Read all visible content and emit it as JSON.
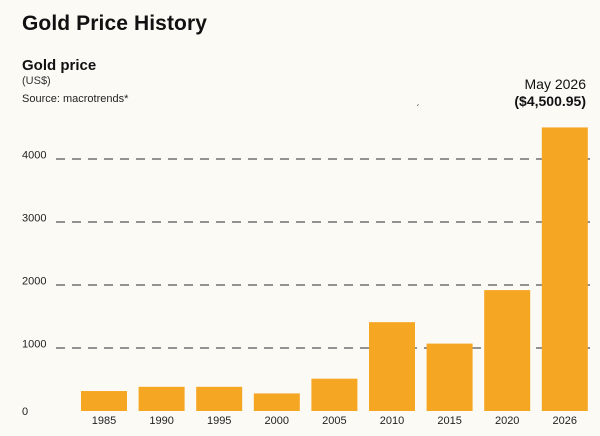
{
  "page_title": "Gold Price History",
  "chart_data": {
    "type": "bar",
    "title": "Gold price",
    "units": "(US$)",
    "source": "Source: macrotrends*",
    "callout": {
      "date": "May 2026",
      "value_text": "($4,500.95)"
    },
    "stray_mark": "ˏ",
    "categories": [
      "1985",
      "1990",
      "1995",
      "2000",
      "2005",
      "2010",
      "2015",
      "2020",
      "2026"
    ],
    "values": [
      317,
      384,
      384,
      279,
      513,
      1410,
      1070,
      1919,
      4500.95
    ],
    "yticks": [
      0,
      1000,
      2000,
      3000,
      4000
    ],
    "ylim": [
      0,
      4700
    ],
    "grid": "dashed horizontal",
    "colors": {
      "bar": "#f5a623",
      "grid": "#2b2b2b"
    }
  }
}
